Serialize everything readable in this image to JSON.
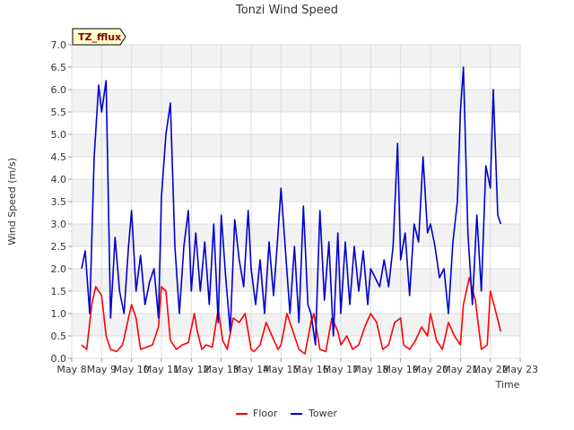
{
  "chart_data": {
    "type": "line",
    "title": "Tonzi Wind Speed",
    "xlabel": "Time",
    "ylabel": "Wind Speed (m/s)",
    "badge": "TZ_fflux",
    "ylim": [
      0,
      7.0
    ],
    "yticks": [
      "0.0",
      "0.5",
      "1.0",
      "1.5",
      "2.0",
      "2.5",
      "3.0",
      "3.5",
      "4.0",
      "4.5",
      "5.0",
      "5.5",
      "6.0",
      "6.5",
      "7.0"
    ],
    "xlim": [
      8,
      23
    ],
    "xticks": [
      "May 8",
      "May 9",
      "May 10",
      "May 11",
      "May 12",
      "May 13",
      "May 14",
      "May 15",
      "May 16",
      "May 17",
      "May 18",
      "May 19",
      "May 20",
      "May 21",
      "May 22",
      "May 23"
    ],
    "grid": true,
    "legend_position": "bottom-center",
    "series": [
      {
        "name": "Floor",
        "color": "#ff0000",
        "x": [
          8.33,
          8.5,
          8.67,
          8.8,
          9.0,
          9.15,
          9.3,
          9.5,
          9.7,
          9.9,
          10.0,
          10.15,
          10.3,
          10.5,
          10.7,
          10.9,
          11.0,
          11.15,
          11.3,
          11.5,
          11.7,
          11.9,
          12.1,
          12.2,
          12.35,
          12.5,
          12.7,
          12.9,
          13.05,
          13.2,
          13.4,
          13.6,
          13.8,
          14.0,
          14.1,
          14.3,
          14.5,
          14.7,
          14.9,
          15.0,
          15.2,
          15.4,
          15.6,
          15.8,
          16.0,
          16.1,
          16.3,
          16.5,
          16.7,
          16.9,
          17.0,
          17.2,
          17.4,
          17.6,
          17.8,
          18.0,
          18.2,
          18.4,
          18.6,
          18.8,
          19.0,
          19.1,
          19.3,
          19.5,
          19.7,
          19.9,
          20.0,
          20.2,
          20.4,
          20.6,
          20.8,
          21.0,
          21.1,
          21.3,
          21.5,
          21.7,
          21.9,
          22.0,
          22.2,
          22.35
        ],
        "y": [
          0.3,
          0.2,
          1.2,
          1.6,
          1.4,
          0.5,
          0.2,
          0.15,
          0.3,
          0.9,
          1.2,
          0.9,
          0.2,
          0.25,
          0.3,
          0.7,
          1.6,
          1.5,
          0.4,
          0.2,
          0.3,
          0.35,
          1.0,
          0.6,
          0.2,
          0.3,
          0.25,
          1.1,
          0.4,
          0.2,
          0.9,
          0.8,
          1.0,
          0.2,
          0.15,
          0.3,
          0.8,
          0.5,
          0.2,
          0.3,
          1.0,
          0.6,
          0.2,
          0.1,
          0.8,
          1.0,
          0.2,
          0.15,
          0.9,
          0.6,
          0.3,
          0.5,
          0.2,
          0.3,
          0.7,
          1.0,
          0.8,
          0.2,
          0.3,
          0.8,
          0.9,
          0.3,
          0.2,
          0.4,
          0.7,
          0.5,
          1.0,
          0.4,
          0.2,
          0.8,
          0.5,
          0.3,
          1.2,
          1.8,
          1.3,
          0.2,
          0.3,
          1.5,
          1.0,
          0.6
        ]
      },
      {
        "name": "Tower",
        "color": "#0000cc",
        "x": [
          8.33,
          8.45,
          8.6,
          8.75,
          8.9,
          9.0,
          9.15,
          9.3,
          9.45,
          9.6,
          9.75,
          9.9,
          10.0,
          10.15,
          10.3,
          10.45,
          10.6,
          10.75,
          10.9,
          11.0,
          11.15,
          11.3,
          11.45,
          11.6,
          11.75,
          11.9,
          12.0,
          12.15,
          12.3,
          12.45,
          12.6,
          12.75,
          12.9,
          13.0,
          13.15,
          13.3,
          13.45,
          13.6,
          13.75,
          13.9,
          14.0,
          14.15,
          14.3,
          14.45,
          14.6,
          14.75,
          14.9,
          15.0,
          15.15,
          15.3,
          15.45,
          15.6,
          15.75,
          15.9,
          16.0,
          16.15,
          16.3,
          16.45,
          16.6,
          16.75,
          16.9,
          17.0,
          17.15,
          17.3,
          17.45,
          17.6,
          17.75,
          17.9,
          18.0,
          18.15,
          18.3,
          18.45,
          18.6,
          18.75,
          18.9,
          19.0,
          19.15,
          19.3,
          19.45,
          19.6,
          19.75,
          19.9,
          20.0,
          20.15,
          20.3,
          20.45,
          20.6,
          20.75,
          20.9,
          21.0,
          21.1,
          21.25,
          21.4,
          21.55,
          21.7,
          21.85,
          22.0,
          22.1,
          22.25,
          22.35
        ],
        "y": [
          2.0,
          2.4,
          1.0,
          4.5,
          6.1,
          5.5,
          6.2,
          0.9,
          2.7,
          1.5,
          1.0,
          2.5,
          3.3,
          1.5,
          2.3,
          1.2,
          1.7,
          2.0,
          0.9,
          3.6,
          5.0,
          5.7,
          2.5,
          1.0,
          2.5,
          3.3,
          1.5,
          2.8,
          1.5,
          2.6,
          1.2,
          3.0,
          0.8,
          3.2,
          1.8,
          0.6,
          3.1,
          2.2,
          1.6,
          3.3,
          2.0,
          1.2,
          2.2,
          1.0,
          2.6,
          1.4,
          2.8,
          3.8,
          2.4,
          1.0,
          2.5,
          0.8,
          3.4,
          1.2,
          1.0,
          0.3,
          3.3,
          1.3,
          2.6,
          0.5,
          2.8,
          1.0,
          2.6,
          1.2,
          2.5,
          1.5,
          2.4,
          1.2,
          2.0,
          1.8,
          1.6,
          2.2,
          1.6,
          2.5,
          4.8,
          2.2,
          2.8,
          1.4,
          3.0,
          2.6,
          4.5,
          2.8,
          3.0,
          2.5,
          1.8,
          2.0,
          1.0,
          2.6,
          3.5,
          5.5,
          6.5,
          2.8,
          1.2,
          3.2,
          1.5,
          4.3,
          3.8,
          6.0,
          3.2,
          3.0
        ]
      }
    ]
  }
}
